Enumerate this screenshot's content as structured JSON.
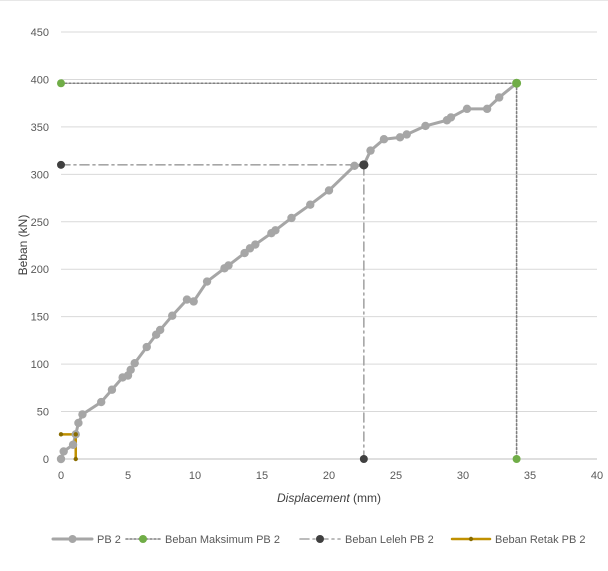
{
  "chart_data": {
    "type": "line",
    "title": "",
    "xlabel_italic": "Displacement",
    "xlabel_unit": " (mm)",
    "ylabel": "Beban (kN)",
    "xlim": [
      0,
      40
    ],
    "ylim": [
      0,
      450
    ],
    "x_ticks": [
      "0",
      "5",
      "10",
      "15",
      "20",
      "25",
      "30",
      "35",
      "40"
    ],
    "y_ticks": [
      "0",
      "50",
      "100",
      "150",
      "200",
      "250",
      "300",
      "350",
      "400",
      "450"
    ],
    "grid": "horizontal",
    "legend_position": "bottom",
    "series": [
      {
        "name": "PB 2",
        "color": "#a6a6a6",
        "style": "solid-with-markers",
        "points": [
          [
            0,
            0
          ],
          [
            0.2,
            8
          ],
          [
            0.9,
            15
          ],
          [
            1.1,
            26
          ],
          [
            1.3,
            38
          ],
          [
            1.6,
            47
          ],
          [
            3.0,
            60
          ],
          [
            3.8,
            73
          ],
          [
            4.6,
            86
          ],
          [
            5.0,
            88
          ],
          [
            5.2,
            94
          ],
          [
            5.5,
            101
          ],
          [
            6.4,
            118
          ],
          [
            7.1,
            131
          ],
          [
            7.4,
            136
          ],
          [
            8.3,
            151
          ],
          [
            9.4,
            168
          ],
          [
            9.9,
            166
          ],
          [
            10.9,
            187
          ],
          [
            12.2,
            201
          ],
          [
            12.5,
            204
          ],
          [
            13.7,
            217
          ],
          [
            14.1,
            222
          ],
          [
            14.5,
            226
          ],
          [
            15.7,
            238
          ],
          [
            16.0,
            241
          ],
          [
            17.2,
            254
          ],
          [
            18.6,
            268
          ],
          [
            20.0,
            283
          ],
          [
            21.9,
            309
          ],
          [
            22.6,
            310
          ],
          [
            23.1,
            325
          ],
          [
            24.1,
            337
          ],
          [
            25.3,
            339
          ],
          [
            25.8,
            342
          ],
          [
            27.2,
            351
          ],
          [
            28.8,
            357
          ],
          [
            29.1,
            360
          ],
          [
            30.3,
            369
          ],
          [
            31.8,
            369
          ],
          [
            32.7,
            381
          ],
          [
            34.0,
            396
          ]
        ]
      },
      {
        "name": "Beban Maksimum PB 2",
        "color": "#70ad47",
        "line_color": "#808080",
        "style": "dotted",
        "points": [
          [
            0,
            396
          ],
          [
            34.0,
            396
          ],
          [
            34.0,
            0
          ]
        ]
      },
      {
        "name": "Beban Leleh PB 2",
        "color": "#404040",
        "line_color": "#a6a6a6",
        "style": "dash-dot",
        "points": [
          [
            0,
            310
          ],
          [
            22.6,
            310
          ],
          [
            22.6,
            0
          ]
        ]
      },
      {
        "name": "Beban Retak PB 2",
        "color": "#c09000",
        "marker_color": "#8a6d00",
        "style": "solid",
        "points": [
          [
            0,
            26
          ],
          [
            1.1,
            26
          ],
          [
            1.1,
            0
          ]
        ]
      }
    ]
  }
}
